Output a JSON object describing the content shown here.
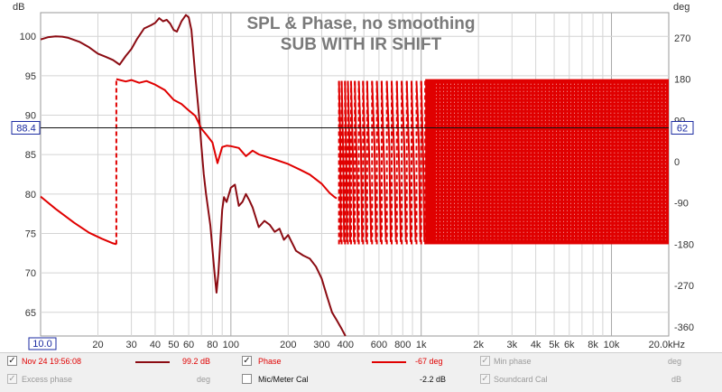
{
  "chart_data": {
    "type": "line",
    "title": "SPL & Phase, no smoothing",
    "subtitle": "SUB WITH IR SHIFT",
    "xlabel": "kHz",
    "ylabel_left": "dB",
    "ylabel_right": "deg",
    "x_scale": "log",
    "xlim": [
      10,
      20000
    ],
    "ylim_left": [
      62,
      103
    ],
    "ylim_right": [
      -380,
      325
    ],
    "grid": true,
    "left_ticks": [
      65,
      70,
      75,
      80,
      85,
      90,
      95,
      100
    ],
    "right_ticks": [
      -360,
      -270,
      -180,
      -90,
      0,
      90,
      180,
      270
    ],
    "x_ticks": [
      {
        "value": 10,
        "label": "10.0"
      },
      {
        "value": 20,
        "label": "20"
      },
      {
        "value": 30,
        "label": "30"
      },
      {
        "value": 40,
        "label": "40"
      },
      {
        "value": 50,
        "label": "50"
      },
      {
        "value": 60,
        "label": "60"
      },
      {
        "value": 80,
        "label": "80"
      },
      {
        "value": 100,
        "label": "100"
      },
      {
        "value": 200,
        "label": "200"
      },
      {
        "value": 300,
        "label": "300"
      },
      {
        "value": 400,
        "label": "400"
      },
      {
        "value": 600,
        "label": "600"
      },
      {
        "value": 800,
        "label": "800"
      },
      {
        "value": 1000,
        "label": "1k"
      },
      {
        "value": 2000,
        "label": "2k"
      },
      {
        "value": 3000,
        "label": "3k"
      },
      {
        "value": 4000,
        "label": "4k"
      },
      {
        "value": 5000,
        "label": "5k"
      },
      {
        "value": 6000,
        "label": "6k"
      },
      {
        "value": 8000,
        "label": "8k"
      },
      {
        "value": 10000,
        "label": "10k"
      },
      {
        "value": 20000,
        "label": "20.0kHz"
      }
    ],
    "cursor": {
      "x_label": "10.0",
      "left_label": "88.4",
      "right_label": "62",
      "left_value": 88.4
    },
    "series": [
      {
        "name": "Nov 24 19:56:08",
        "axis": "left",
        "color": "#8b0b12",
        "points": [
          [
            10,
            99.6
          ],
          [
            11,
            99.9
          ],
          [
            12,
            100
          ],
          [
            13,
            99.95
          ],
          [
            14,
            99.8
          ],
          [
            16,
            99.3
          ],
          [
            18,
            98.6
          ],
          [
            20,
            97.8
          ],
          [
            22,
            97.4
          ],
          [
            24,
            97
          ],
          [
            25,
            96.7
          ],
          [
            26,
            96.4
          ],
          [
            28,
            97.5
          ],
          [
            30,
            98.4
          ],
          [
            32,
            99.6
          ],
          [
            35,
            101
          ],
          [
            38,
            101.4
          ],
          [
            40,
            101.7
          ],
          [
            42,
            102.3
          ],
          [
            44,
            101.9
          ],
          [
            46,
            102.1
          ],
          [
            48,
            101.6
          ],
          [
            50,
            100.8
          ],
          [
            52,
            100.6
          ],
          [
            55,
            101.9
          ],
          [
            58,
            102.7
          ],
          [
            60,
            102.4
          ],
          [
            62,
            100.8
          ],
          [
            65,
            95
          ],
          [
            68,
            90
          ],
          [
            70,
            86
          ],
          [
            72,
            82.5
          ],
          [
            74,
            80
          ],
          [
            76,
            78
          ],
          [
            78,
            76
          ],
          [
            80,
            73
          ],
          [
            82,
            70
          ],
          [
            84,
            67.5
          ],
          [
            86,
            70
          ],
          [
            88,
            74
          ],
          [
            90,
            78
          ],
          [
            92,
            79.6
          ],
          [
            95,
            79
          ],
          [
            100,
            80.8
          ],
          [
            105,
            81.2
          ],
          [
            110,
            78.5
          ],
          [
            115,
            79
          ],
          [
            120,
            80
          ],
          [
            125,
            79.2
          ],
          [
            130,
            78.3
          ],
          [
            140,
            75.8
          ],
          [
            150,
            76.6
          ],
          [
            160,
            76.1
          ],
          [
            170,
            75.2
          ],
          [
            180,
            75.6
          ],
          [
            190,
            74.2
          ],
          [
            200,
            74.8
          ],
          [
            220,
            72.8
          ],
          [
            240,
            72.2
          ],
          [
            260,
            71.8
          ],
          [
            280,
            70.8
          ],
          [
            300,
            69.3
          ],
          [
            320,
            67
          ],
          [
            340,
            65
          ],
          [
            360,
            64
          ],
          [
            380,
            63
          ],
          [
            400,
            62
          ]
        ]
      },
      {
        "name": "Phase",
        "axis": "right",
        "color": "#e00000",
        "pattern": "phase wraps between -180 and 180 deg with increasing density above 350 Hz; dense wrapping from about 1.05 kHz to 20 kHz",
        "points": [
          [
            10,
            -76
          ],
          [
            12,
            -103
          ],
          [
            15,
            -133
          ],
          [
            18,
            -155
          ],
          [
            21,
            -168
          ],
          [
            24,
            -178
          ],
          [
            25,
            -180
          ],
          [
            25.01,
            180
          ],
          [
            28,
            175
          ],
          [
            30,
            178
          ],
          [
            33,
            172
          ],
          [
            36,
            176
          ],
          [
            40,
            168
          ],
          [
            45,
            156
          ],
          [
            50,
            135
          ],
          [
            55,
            126
          ],
          [
            60,
            112
          ],
          [
            65,
            100
          ],
          [
            70,
            72
          ],
          [
            75,
            57
          ],
          [
            80,
            42
          ],
          [
            85,
            -3
          ],
          [
            90,
            32
          ],
          [
            95,
            35
          ],
          [
            100,
            34
          ],
          [
            110,
            30
          ],
          [
            120,
            12
          ],
          [
            130,
            24
          ],
          [
            140,
            16
          ],
          [
            150,
            12
          ],
          [
            170,
            5
          ],
          [
            200,
            -5
          ],
          [
            230,
            -17
          ],
          [
            260,
            -28
          ],
          [
            300,
            -48
          ],
          [
            330,
            -68
          ],
          [
            350,
            -77
          ],
          [
            360,
            -80
          ]
        ]
      }
    ],
    "phase_wrap_x": [
      370,
      382,
      398,
      412,
      428,
      448,
      470,
      495,
      520,
      552,
      585,
      620,
      660,
      700,
      745,
      790,
      840,
      890,
      945,
      1000,
      1050
    ],
    "dense_phase_start": 1050,
    "dense_phase_end": 20000
  },
  "legend": {
    "row1": {
      "measurement_name": "Nov 24 19:56:08",
      "measurement_value": "99.2 dB",
      "phase_label": "Phase",
      "phase_value": "-67 deg",
      "min_phase_label": "Min phase",
      "min_phase_unit": "deg"
    },
    "row2": {
      "excess_phase_label": "Excess phase",
      "excess_phase_unit": "deg",
      "mic_cal_label": "Mic/Meter Cal",
      "mic_cal_value": "-2.2 dB",
      "soundcard_cal_label": "Soundcard Cal",
      "soundcard_cal_unit": "dB"
    },
    "colors": {
      "measurement": "#8b0b12",
      "phase": "#e00000",
      "disabled": "#9a9a9a"
    }
  }
}
